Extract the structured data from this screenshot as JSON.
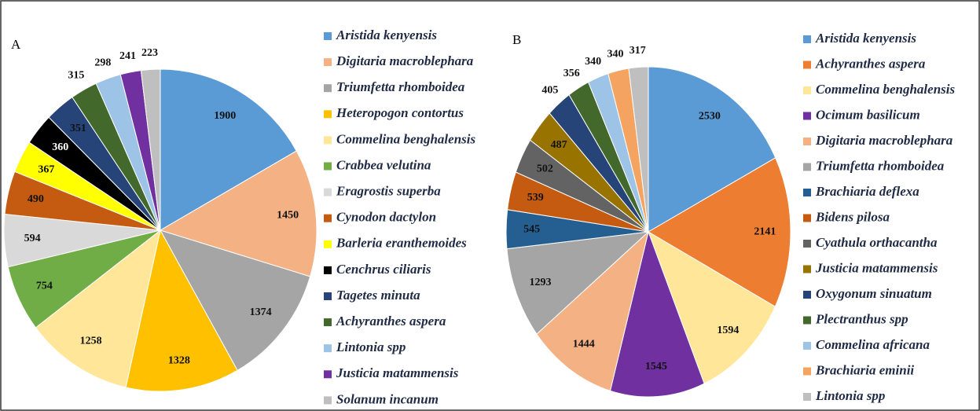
{
  "chart_data": [
    {
      "type": "pie",
      "title": "A",
      "categories": [
        "Aristida kenyensis",
        "Digitaria macroblephara",
        "Triumfetta rhomboidea",
        "Heteropogon contortus",
        "Commelina benghalensis",
        "Crabbea velutina",
        "Eragrostis superba",
        "Cynodon dactylon",
        "Barleria eranthemoides",
        "Cenchrus ciliaris",
        "Tagetes minuta",
        "Achyranthes aspera",
        "Lintonia spp",
        "Justicia matammensis",
        "Solanum incanum"
      ],
      "values": [
        1900,
        1450,
        1374,
        1328,
        1258,
        754,
        594,
        490,
        367,
        360,
        351,
        315,
        298,
        241,
        223
      ],
      "colors": [
        "#5b9bd5",
        "#f4b183",
        "#a5a5a5",
        "#ffc000",
        "#ffe699",
        "#70ad47",
        "#d9d9d9",
        "#c55a11",
        "#ffff00",
        "#000000",
        "#264478",
        "#43682b",
        "#9dc3e6",
        "#7030a0",
        "#bfbfbf"
      ]
    },
    {
      "type": "pie",
      "title": "B",
      "categories": [
        "Aristida kenyensis",
        "Achyranthes aspera",
        "Commelina benghalensis",
        "Ocimum basilicum",
        "Digitaria macroblephara",
        "Triumfetta rhomboidea",
        "Brachiaria deflexa",
        "Bidens pilosa",
        "Cyathula orthacantha",
        "Justicia matammensis",
        "Oxygonum sinuatum",
        "Plectranthus spp",
        "Commelina africana",
        "Brachiaria eminii",
        "Lintonia spp"
      ],
      "values": [
        2530,
        2141,
        1594,
        1545,
        1444,
        1293,
        545,
        539,
        502,
        487,
        405,
        356,
        340,
        340,
        317
      ],
      "colors": [
        "#5b9bd5",
        "#ed7d31",
        "#ffe699",
        "#7030a0",
        "#f4b183",
        "#a5a5a5",
        "#255e91",
        "#c55a11",
        "#636363",
        "#997300",
        "#264478",
        "#43682b",
        "#9dc3e6",
        "#f4a460",
        "#bfbfbf"
      ]
    }
  ]
}
